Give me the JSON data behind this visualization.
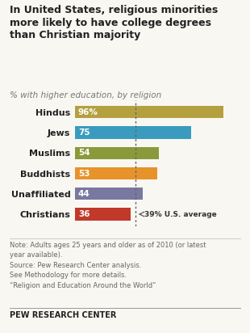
{
  "categories": [
    "Hindus",
    "Jews",
    "Muslims",
    "Buddhists",
    "Unaffiliated",
    "Christians"
  ],
  "values": [
    96,
    75,
    54,
    53,
    44,
    36
  ],
  "bar_colors": [
    "#b5a040",
    "#3a9bbf",
    "#8a9a3a",
    "#e8922a",
    "#7878a0",
    "#c0392b"
  ],
  "bar_labels": [
    "96%",
    "75",
    "54",
    "53",
    "44",
    "36"
  ],
  "title": "In United States, religious minorities\nmore likely to have college degrees\nthan Christian majority",
  "subtitle": "% with higher education, by religion",
  "us_average": 39,
  "us_average_label": "39% U.S. average",
  "note_line1": "Note: Adults ages 25 years and older as of 2010 (or latest",
  "note_line2": "year available).",
  "note_line3": "Source: Pew Research Center analysis.",
  "note_line4": "See Methodology for more details.",
  "note_line5": "“Religion and Education Around the World”",
  "footer": "PEW RESEARCH CENTER",
  "xlim": [
    0,
    105
  ],
  "background_color": "#f9f7f2",
  "bar_height": 0.6
}
